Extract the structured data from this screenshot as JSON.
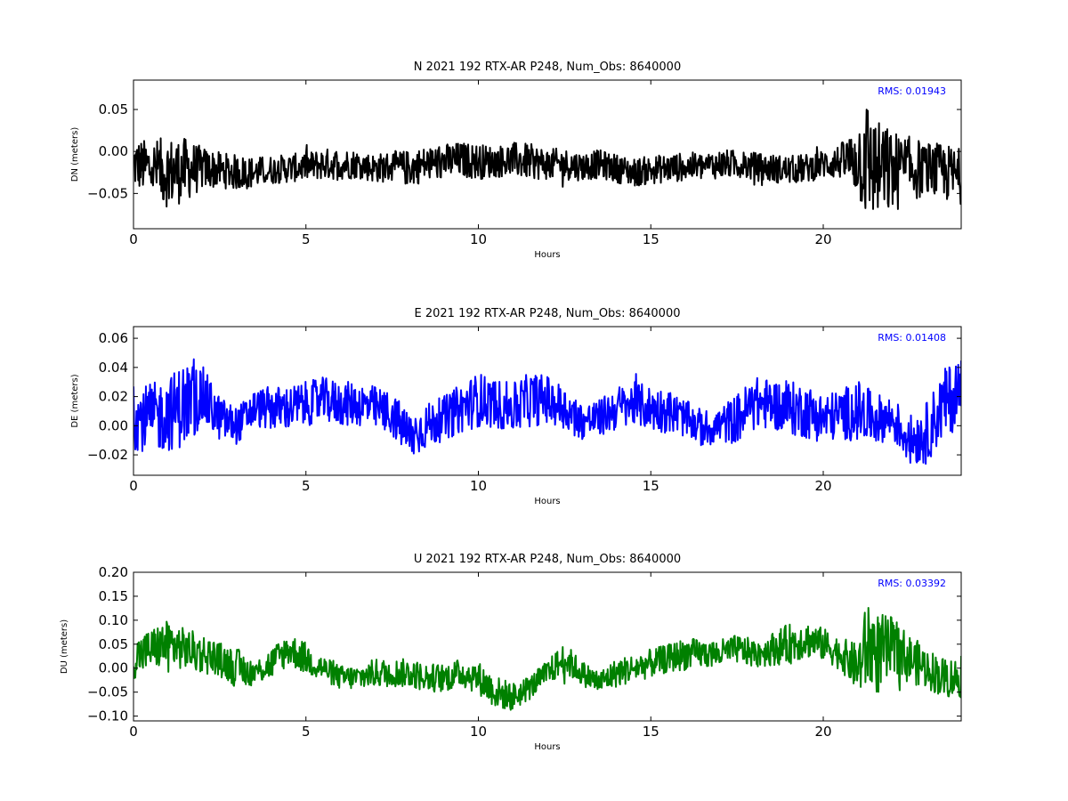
{
  "chart_data": [
    {
      "type": "line",
      "title": "N 2021 192 RTX-AR  P248, Num_Obs: 8640000",
      "xlabel": "Hours",
      "ylabel": "DN (meters)",
      "xlim": [
        0,
        24
      ],
      "ylim": [
        -0.092,
        0.085
      ],
      "xticks": [
        0,
        5,
        10,
        15,
        20
      ],
      "yticks": [
        -0.05,
        0.0,
        0.05
      ],
      "ytick_labels": [
        "−0.05",
        "0.00",
        "0.05"
      ],
      "color": "#000000",
      "rms_label": "RMS:  0.01943",
      "rms_color": "#0000ff",
      "grid": false,
      "series": [
        {
          "x": [
            0,
            0.5,
            1,
            1.5,
            2,
            2.5,
            3,
            3.5,
            4,
            4.5,
            5,
            5.5,
            6,
            6.5,
            7,
            7.5,
            8,
            8.5,
            9,
            9.5,
            10,
            10.5,
            11,
            11.5,
            12,
            12.5,
            13,
            13.5,
            14,
            14.5,
            15,
            15.5,
            16,
            16.5,
            17,
            17.5,
            18,
            18.5,
            19,
            19.5,
            20,
            20.5,
            21,
            21.2,
            21.5,
            22,
            22.5,
            23,
            23.5,
            24
          ],
          "center": [
            -0.015,
            -0.02,
            -0.025,
            -0.022,
            -0.02,
            -0.022,
            -0.025,
            -0.025,
            -0.022,
            -0.02,
            -0.018,
            -0.015,
            -0.015,
            -0.015,
            -0.02,
            -0.018,
            -0.02,
            -0.015,
            -0.012,
            -0.01,
            -0.012,
            -0.012,
            -0.01,
            -0.012,
            -0.015,
            -0.015,
            -0.018,
            -0.015,
            -0.02,
            -0.025,
            -0.022,
            -0.02,
            -0.018,
            -0.018,
            -0.015,
            -0.015,
            -0.018,
            -0.02,
            -0.022,
            -0.02,
            -0.015,
            -0.012,
            -0.01,
            -0.005,
            -0.02,
            -0.025,
            -0.02,
            -0.022,
            -0.025,
            -0.03
          ],
          "amplitude": [
            0.035,
            0.04,
            0.05,
            0.045,
            0.03,
            0.025,
            0.025,
            0.022,
            0.02,
            0.02,
            0.02,
            0.022,
            0.022,
            0.02,
            0.02,
            0.022,
            0.025,
            0.025,
            0.025,
            0.025,
            0.025,
            0.022,
            0.025,
            0.025,
            0.022,
            0.022,
            0.02,
            0.02,
            0.02,
            0.02,
            0.02,
            0.02,
            0.02,
            0.02,
            0.02,
            0.02,
            0.02,
            0.02,
            0.02,
            0.02,
            0.02,
            0.025,
            0.05,
            0.09,
            0.07,
            0.06,
            0.045,
            0.04,
            0.04,
            0.04
          ]
        }
      ]
    },
    {
      "type": "line",
      "title": "E 2021 192 RTX-AR  P248, Num_Obs: 8640000",
      "xlabel": "Hours",
      "ylabel": "DE (meters)",
      "xlim": [
        0,
        24
      ],
      "ylim": [
        -0.034,
        0.068
      ],
      "xticks": [
        0,
        5,
        10,
        15,
        20
      ],
      "yticks": [
        -0.02,
        0.0,
        0.02,
        0.04,
        0.06
      ],
      "ytick_labels": [
        "−0.02",
        "0.00",
        "0.02",
        "0.04",
        "0.06"
      ],
      "color": "#0000ff",
      "rms_label": "RMS:  0.01408",
      "rms_color": "#0000ff",
      "grid": false,
      "series": [
        {
          "x": [
            0,
            0.5,
            1,
            1.5,
            2,
            2.5,
            3,
            3.5,
            4,
            4.5,
            5,
            5.5,
            6,
            6.5,
            7,
            7.5,
            8,
            8.5,
            9,
            9.5,
            10,
            10.5,
            11,
            11.5,
            12,
            12.5,
            13,
            13.5,
            14,
            14.5,
            15,
            15.5,
            16,
            16.5,
            17,
            17.5,
            18,
            18.5,
            19,
            19.5,
            20,
            20.5,
            21,
            21.5,
            22,
            22.5,
            23,
            23.5,
            24
          ],
          "center": [
            0.005,
            0.005,
            0.008,
            0.015,
            0.02,
            0.005,
            0.0,
            0.012,
            0.012,
            0.012,
            0.015,
            0.018,
            0.015,
            0.015,
            0.012,
            0.008,
            -0.008,
            0.0,
            0.005,
            0.012,
            0.018,
            0.015,
            0.012,
            0.018,
            0.018,
            0.012,
            0.003,
            0.005,
            0.012,
            0.015,
            0.012,
            0.01,
            0.005,
            -0.002,
            0.0,
            0.005,
            0.015,
            0.015,
            0.012,
            0.01,
            0.005,
            0.008,
            0.01,
            0.005,
            0.005,
            -0.01,
            -0.005,
            0.015,
            0.025
          ],
          "amplitude": [
            0.025,
            0.028,
            0.03,
            0.035,
            0.025,
            0.018,
            0.015,
            0.015,
            0.018,
            0.018,
            0.018,
            0.018,
            0.018,
            0.018,
            0.018,
            0.018,
            0.02,
            0.018,
            0.018,
            0.02,
            0.022,
            0.02,
            0.02,
            0.022,
            0.02,
            0.018,
            0.015,
            0.015,
            0.018,
            0.018,
            0.018,
            0.018,
            0.015,
            0.015,
            0.015,
            0.02,
            0.022,
            0.02,
            0.022,
            0.022,
            0.02,
            0.02,
            0.025,
            0.02,
            0.018,
            0.02,
            0.025,
            0.028,
            0.03
          ]
        }
      ]
    },
    {
      "type": "line",
      "title": "U 2021 192 RTX-AR  P248, Num_Obs: 8640000",
      "xlabel": "Hours",
      "ylabel": "DU (meters)",
      "xlim": [
        0,
        24
      ],
      "ylim": [
        -0.11,
        0.2
      ],
      "xticks": [
        0,
        5,
        10,
        15,
        20
      ],
      "yticks": [
        -0.1,
        -0.05,
        0.0,
        0.05,
        0.1,
        0.15,
        0.2
      ],
      "ytick_labels": [
        "−0.10",
        "−0.05",
        "0.00",
        "0.05",
        "0.10",
        "0.15",
        "0.20"
      ],
      "color": "#008000",
      "rms_label": "RMS:  0.03392",
      "rms_color": "#0000ff",
      "grid": false,
      "series": [
        {
          "x": [
            0,
            0.5,
            1,
            1.5,
            2,
            2.5,
            3,
            3.5,
            4,
            4.5,
            5,
            5.5,
            6,
            6.5,
            7,
            7.5,
            8,
            8.5,
            9,
            9.5,
            10,
            10.5,
            11,
            11.5,
            12,
            12.5,
            13,
            13.5,
            14,
            14.5,
            15,
            15.5,
            16,
            16.5,
            17,
            17.5,
            18,
            18.5,
            19,
            19.5,
            20,
            20.5,
            21,
            21.3,
            21.6,
            22,
            22.5,
            23,
            23.5,
            24
          ],
          "center": [
            0.02,
            0.04,
            0.05,
            0.04,
            0.03,
            0.02,
            0.0,
            -0.01,
            0.01,
            0.04,
            0.02,
            0.0,
            -0.02,
            -0.02,
            -0.01,
            -0.01,
            -0.01,
            -0.02,
            -0.02,
            -0.01,
            -0.02,
            -0.05,
            -0.06,
            -0.04,
            -0.01,
            0.02,
            -0.01,
            -0.03,
            -0.01,
            0.0,
            0.01,
            0.02,
            0.03,
            0.03,
            0.03,
            0.04,
            0.03,
            0.04,
            0.05,
            0.06,
            0.05,
            0.03,
            0.0,
            0.05,
            0.03,
            0.04,
            0.02,
            0.0,
            -0.02,
            -0.02
          ],
          "amplitude": [
            0.05,
            0.05,
            0.06,
            0.05,
            0.05,
            0.04,
            0.05,
            0.03,
            0.04,
            0.04,
            0.04,
            0.03,
            0.03,
            0.03,
            0.035,
            0.035,
            0.035,
            0.035,
            0.035,
            0.035,
            0.04,
            0.04,
            0.035,
            0.03,
            0.03,
            0.04,
            0.03,
            0.03,
            0.035,
            0.035,
            0.035,
            0.035,
            0.04,
            0.035,
            0.035,
            0.035,
            0.035,
            0.04,
            0.05,
            0.045,
            0.04,
            0.04,
            0.06,
            0.12,
            0.1,
            0.08,
            0.06,
            0.05,
            0.05,
            0.05
          ]
        }
      ]
    }
  ]
}
